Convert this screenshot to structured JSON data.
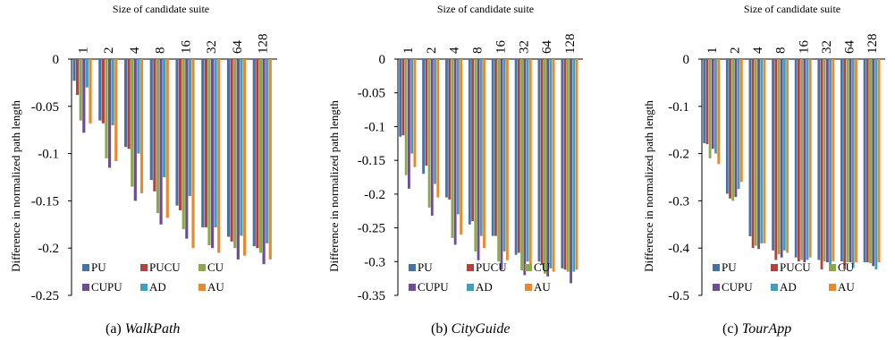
{
  "colors": {
    "PU": "#4472a6",
    "PUCU": "#b5413e",
    "CU": "#8ba94a",
    "CUPU": "#6f4d96",
    "AD": "#3f9fbe",
    "AU": "#e6892f"
  },
  "chart_data": [
    {
      "type": "bar",
      "title": "Size of candidate suite",
      "ylabel": "Difference in normalized path length",
      "caption_prefix": "(a) ",
      "caption_name": "WalkPath",
      "categories": [
        "1",
        "2",
        "4",
        "8",
        "16",
        "32",
        "64",
        "128"
      ],
      "ylim": [
        -0.25,
        0
      ],
      "yticks": [
        "0",
        "-0.05",
        "-0.1",
        "-0.15",
        "-0.2",
        "-0.25"
      ],
      "ytick_values": [
        0,
        -0.05,
        -0.1,
        -0.15,
        -0.2,
        -0.25
      ],
      "series": [
        {
          "name": "PU",
          "values": [
            -0.023,
            -0.065,
            -0.093,
            -0.128,
            -0.155,
            -0.178,
            -0.188,
            -0.198
          ]
        },
        {
          "name": "PUCU",
          "values": [
            -0.038,
            -0.068,
            -0.095,
            -0.14,
            -0.16,
            -0.178,
            -0.193,
            -0.2
          ]
        },
        {
          "name": "CU",
          "values": [
            -0.065,
            -0.105,
            -0.135,
            -0.163,
            -0.18,
            -0.197,
            -0.2,
            -0.205
          ]
        },
        {
          "name": "CUPU",
          "values": [
            -0.078,
            -0.115,
            -0.15,
            -0.175,
            -0.19,
            -0.2,
            -0.212,
            -0.217
          ]
        },
        {
          "name": "AD",
          "values": [
            -0.03,
            -0.07,
            -0.1,
            -0.125,
            -0.145,
            -0.178,
            -0.187,
            -0.195
          ]
        },
        {
          "name": "AU",
          "values": [
            -0.068,
            -0.108,
            -0.142,
            -0.168,
            -0.2,
            -0.205,
            -0.208,
            -0.212
          ]
        }
      ],
      "legend": [
        "PU",
        "PUCU",
        "CU",
        "CUPU",
        "AD",
        "AU"
      ]
    },
    {
      "type": "bar",
      "title": "Size of candidate suite",
      "ylabel": "Difference in normalized path length",
      "caption_prefix": "(b) ",
      "caption_name": "CityGuide",
      "categories": [
        "1",
        "2",
        "4",
        "8",
        "16",
        "32",
        "64",
        "128"
      ],
      "ylim": [
        -0.35,
        0
      ],
      "yticks": [
        "0",
        "-0.05",
        "-0.1",
        "-0.15",
        "-0.2",
        "-0.25",
        "-0.3",
        "-0.35"
      ],
      "ytick_values": [
        0,
        -0.05,
        -0.1,
        -0.15,
        -0.2,
        -0.25,
        -0.3,
        -0.35
      ],
      "series": [
        {
          "name": "PU",
          "values": [
            -0.115,
            -0.17,
            -0.205,
            -0.245,
            -0.262,
            -0.29,
            -0.3,
            -0.31
          ]
        },
        {
          "name": "PUCU",
          "values": [
            -0.113,
            -0.158,
            -0.208,
            -0.24,
            -0.262,
            -0.287,
            -0.305,
            -0.312
          ]
        },
        {
          "name": "CU",
          "values": [
            -0.172,
            -0.22,
            -0.265,
            -0.285,
            -0.3,
            -0.313,
            -0.318,
            -0.315
          ]
        },
        {
          "name": "CUPU",
          "values": [
            -0.192,
            -0.232,
            -0.275,
            -0.298,
            -0.312,
            -0.32,
            -0.322,
            -0.332
          ]
        },
        {
          "name": "AD",
          "values": [
            -0.14,
            -0.185,
            -0.23,
            -0.262,
            -0.285,
            -0.3,
            -0.31,
            -0.315
          ]
        },
        {
          "name": "AU",
          "values": [
            -0.16,
            -0.205,
            -0.26,
            -0.28,
            -0.298,
            -0.305,
            -0.315,
            -0.312
          ]
        }
      ],
      "legend": [
        "PU",
        "PUCU",
        "CU",
        "CUPU",
        "AD",
        "AU"
      ]
    },
    {
      "type": "bar",
      "title": "Size of candidate suite",
      "ylabel": "Difference in normalized path length",
      "caption_prefix": "(c) ",
      "caption_name": "TourApp",
      "categories": [
        "1",
        "2",
        "4",
        "8",
        "16",
        "32",
        "64",
        "128"
      ],
      "ylim": [
        -0.5,
        0
      ],
      "yticks": [
        "0",
        "-0.1",
        "-0.2",
        "-0.3",
        "-0.4",
        "-0.5"
      ],
      "ytick_values": [
        0,
        -0.1,
        -0.2,
        -0.3,
        -0.4,
        -0.5
      ],
      "series": [
        {
          "name": "PU",
          "values": [
            -0.178,
            -0.285,
            -0.375,
            -0.405,
            -0.42,
            -0.425,
            -0.428,
            -0.43
          ]
        },
        {
          "name": "PUCU",
          "values": [
            -0.18,
            -0.295,
            -0.4,
            -0.425,
            -0.428,
            -0.445,
            -0.445,
            -0.43
          ]
        },
        {
          "name": "CU",
          "values": [
            -0.21,
            -0.3,
            -0.395,
            -0.413,
            -0.425,
            -0.428,
            -0.43,
            -0.432
          ]
        },
        {
          "name": "CUPU",
          "values": [
            -0.19,
            -0.292,
            -0.402,
            -0.42,
            -0.43,
            -0.43,
            -0.43,
            -0.438
          ]
        },
        {
          "name": "AD",
          "values": [
            -0.2,
            -0.275,
            -0.39,
            -0.405,
            -0.425,
            -0.438,
            -0.442,
            -0.445
          ]
        },
        {
          "name": "AU",
          "values": [
            -0.222,
            -0.26,
            -0.39,
            -0.41,
            -0.42,
            -0.428,
            -0.43,
            -0.43
          ]
        }
      ],
      "legend": [
        "PU",
        "PUCU",
        "CU",
        "CUPU",
        "AD",
        "AU"
      ]
    }
  ]
}
